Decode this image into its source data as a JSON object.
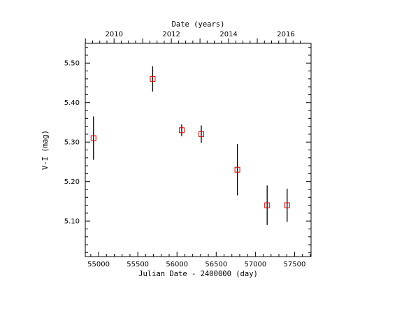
{
  "chart_data": {
    "type": "scatter",
    "title": "",
    "xlabel": "Julian Date - 2400000 (day)",
    "ylabel": "V-I (mag)",
    "top_xlabel": "Date (years)",
    "xlim": [
      54830,
      57710
    ],
    "ylim": [
      5.01,
      5.55
    ],
    "x_major_ticks": [
      55000,
      55500,
      56000,
      56500,
      57000,
      57500
    ],
    "x_minor_step": 100,
    "y_major_ticks": [
      5.1,
      5.2,
      5.3,
      5.4,
      5.5
    ],
    "y_tick_labels": [
      "5.10",
      "5.20",
      "5.30",
      "5.40",
      "5.50"
    ],
    "y_minor_step": 0.02,
    "top_major_ticks": [
      2010,
      2012,
      2014,
      2016
    ],
    "top_minor_step": 0.25,
    "year_jd_reference": {
      "year": 2010,
      "jd": 55197.5,
      "days_per_year": 365.25
    },
    "marker": "open-square",
    "marker_color": "#dd0000",
    "errorbar_color": "#000000",
    "points": [
      {
        "x": 54935,
        "y": 5.31,
        "err": 0.055
      },
      {
        "x": 55690,
        "y": 5.46,
        "err": 0.032
      },
      {
        "x": 56060,
        "y": 5.33,
        "err": 0.015
      },
      {
        "x": 56310,
        "y": 5.32,
        "err": 0.022
      },
      {
        "x": 56770,
        "y": 5.23,
        "err": 0.065
      },
      {
        "x": 57150,
        "y": 5.14,
        "err": 0.05
      },
      {
        "x": 57405,
        "y": 5.14,
        "err": 0.042
      }
    ]
  }
}
